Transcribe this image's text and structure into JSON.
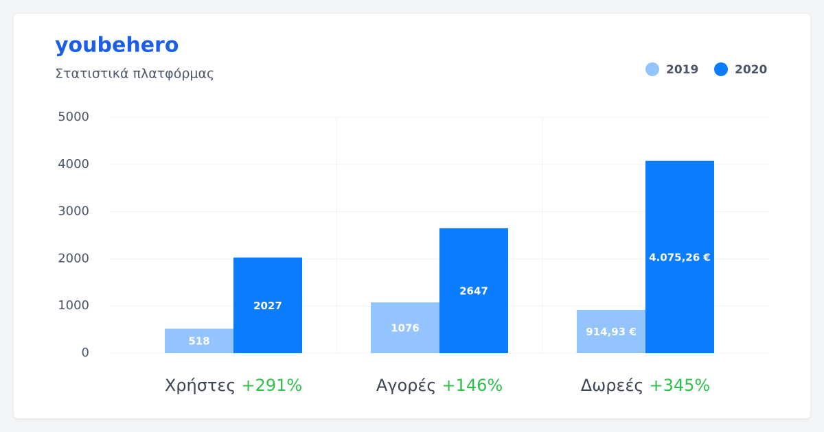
{
  "header": {
    "brand": "youbehero",
    "subtitle": "Στατιστικά πλατφόρμας"
  },
  "chart_data": {
    "type": "bar",
    "categories": [
      "Χρήστες",
      "Αγορές",
      "Δωρεές"
    ],
    "growth": [
      "+291%",
      "+146%",
      "+345%"
    ],
    "series": [
      {
        "name": "2019",
        "color": "#93c4fd",
        "values": [
          518,
          1076,
          914.93
        ],
        "value_labels": [
          "518",
          "1076",
          "914,93 €"
        ]
      },
      {
        "name": "2020",
        "color": "#0a7cff",
        "values": [
          2027,
          2647,
          4075.26
        ],
        "value_labels": [
          "2027",
          "2647",
          "4.075,26 €"
        ]
      }
    ],
    "ylim": [
      0,
      5000
    ],
    "yticks": [
      0,
      1000,
      2000,
      3000,
      4000,
      5000
    ],
    "grid": true,
    "legend": "top-right"
  }
}
